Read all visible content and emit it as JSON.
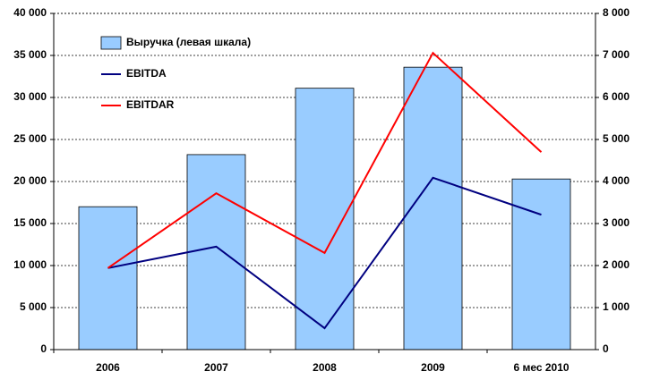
{
  "chart_data": {
    "type": "bar_line",
    "categories": [
      "2006",
      "2007",
      "2008",
      "2009",
      "6 мес 2010"
    ],
    "series": [
      {
        "name": "Выручка (левая шкала)",
        "type": "bar",
        "color": "#99ccff",
        "values": [
          17000,
          23200,
          31100,
          33600,
          20300
        ]
      },
      {
        "name": "EBITDA",
        "type": "line",
        "axis": "y2",
        "color": "#000080",
        "values": [
          1940,
          2450,
          510,
          4090,
          3210
        ]
      },
      {
        "name": "EBITDAR",
        "type": "line",
        "axis": "y2",
        "color": "#ff0000",
        "values": [
          1940,
          3720,
          2300,
          7060,
          4700
        ]
      }
    ],
    "ylim": [
      0,
      40000
    ],
    "yticks": [
      {
        "value": 0,
        "label": "0"
      },
      {
        "value": 5000,
        "label": "5 000"
      },
      {
        "value": 10000,
        "label": "10 000"
      },
      {
        "value": 15000,
        "label": "15 000"
      },
      {
        "value": 20000,
        "label": "20 000"
      },
      {
        "value": 25000,
        "label": "25 000"
      },
      {
        "value": 30000,
        "label": "30 000"
      },
      {
        "value": 35000,
        "label": "35 000"
      },
      {
        "value": 40000,
        "label": "40 000"
      }
    ],
    "y2lim": [
      0,
      8000
    ],
    "y2ticks": [
      {
        "value": 0,
        "label": "0"
      },
      {
        "value": 1000,
        "label": "1 000"
      },
      {
        "value": 2000,
        "label": "2 000"
      },
      {
        "value": 3000,
        "label": "3 000"
      },
      {
        "value": 4000,
        "label": "4 000"
      },
      {
        "value": 5000,
        "label": "5 000"
      },
      {
        "value": 6000,
        "label": "6 000"
      },
      {
        "value": 7000,
        "label": "7 000"
      },
      {
        "value": 8000,
        "label": "8 000"
      }
    ],
    "grid": true,
    "legend": "top-left"
  }
}
